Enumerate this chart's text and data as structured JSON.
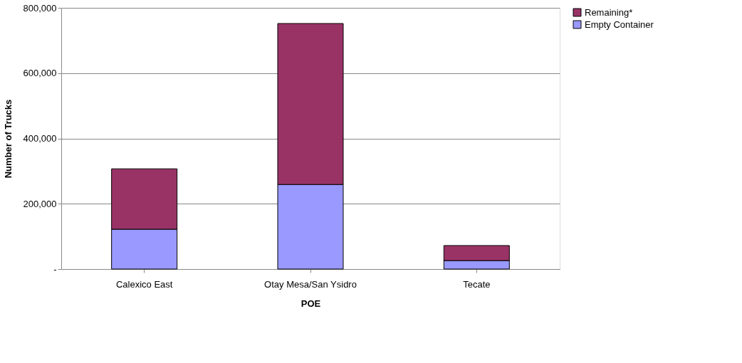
{
  "chart_data": {
    "type": "bar",
    "stacked": true,
    "xlabel": "POE",
    "ylabel": "Number of Trucks",
    "categories": [
      "Calexico East",
      "Otay Mesa/San Ysidro",
      "Tecate"
    ],
    "series": [
      {
        "name": "Empty Container",
        "color": "#9999ff",
        "values": [
          122000,
          259000,
          26000
        ]
      },
      {
        "name": "Remaining*",
        "color": "#993366",
        "values": [
          185000,
          493000,
          46000
        ]
      }
    ],
    "ylim": [
      0,
      800000
    ],
    "yticks": [
      {
        "value": 0,
        "label": "-"
      },
      {
        "value": 200000,
        "label": "200,000"
      },
      {
        "value": 400000,
        "label": "400,000"
      },
      {
        "value": 600000,
        "label": "600,000"
      },
      {
        "value": 800000,
        "label": "800,000"
      }
    ],
    "grid": "y",
    "legend": "right"
  }
}
